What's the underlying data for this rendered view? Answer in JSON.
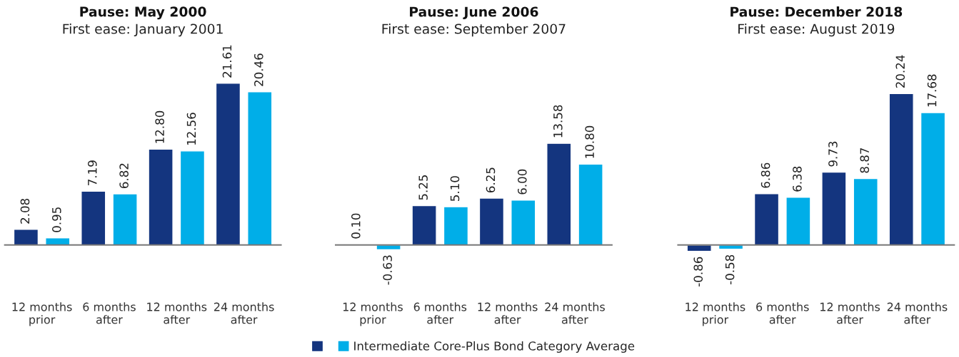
{
  "chart_data": [
    {
      "type": "bar",
      "title": "Pause: May 2000",
      "subtitle": "First ease: January 2001",
      "categories": [
        "12 months\nprior",
        "6 months\nafter",
        "12 months\nafter",
        "24 months\nafter"
      ],
      "data_labels": true,
      "series": [
        {
          "color": "#14357f",
          "values": [
            2.08,
            7.19,
            12.8,
            21.61
          ],
          "value_labels": [
            "2.08",
            "7.19",
            "12.80",
            "21.61"
          ]
        },
        {
          "color": "#00aee8",
          "values": [
            0.95,
            6.82,
            12.56,
            20.46
          ],
          "value_labels": [
            "0.95",
            "6.82",
            "12.56",
            "20.46"
          ]
        }
      ]
    },
    {
      "type": "bar",
      "title": "Pause: June 2006",
      "subtitle": "First ease: September 2007",
      "categories": [
        "12 months\nprior",
        "6 months\nafter",
        "12 months\nafter",
        "24 months\nafter"
      ],
      "data_labels": true,
      "legend": "bottom",
      "series": [
        {
          "color": "#14357f",
          "values": [
            0.1,
            5.25,
            6.25,
            13.58
          ],
          "value_labels": [
            "0.10",
            "5.25",
            "6.25",
            "13.58"
          ]
        },
        {
          "name": "Intermediate Core-Plus Bond Category Average",
          "color": "#00aee8",
          "values": [
            -0.63,
            5.1,
            6.0,
            10.8
          ],
          "value_labels": [
            "-0.63",
            "5.10",
            "6.00",
            "10.80"
          ]
        }
      ]
    },
    {
      "type": "bar",
      "title": "Pause: December 2018",
      "subtitle": "First ease: August 2019",
      "categories": [
        "12 months\nprior",
        "6 months\nafter",
        "12 months\nafter",
        "24 months\nafter"
      ],
      "data_labels": true,
      "series": [
        {
          "color": "#14357f",
          "values": [
            -0.86,
            6.86,
            9.73,
            20.24
          ],
          "value_labels": [
            "-0.86",
            "6.86",
            "9.73",
            "20.24"
          ]
        },
        {
          "color": "#00aee8",
          "values": [
            -0.58,
            6.38,
            8.87,
            17.68
          ],
          "value_labels": [
            "-0.58",
            "6.38",
            "8.87",
            "17.68"
          ]
        }
      ]
    }
  ]
}
